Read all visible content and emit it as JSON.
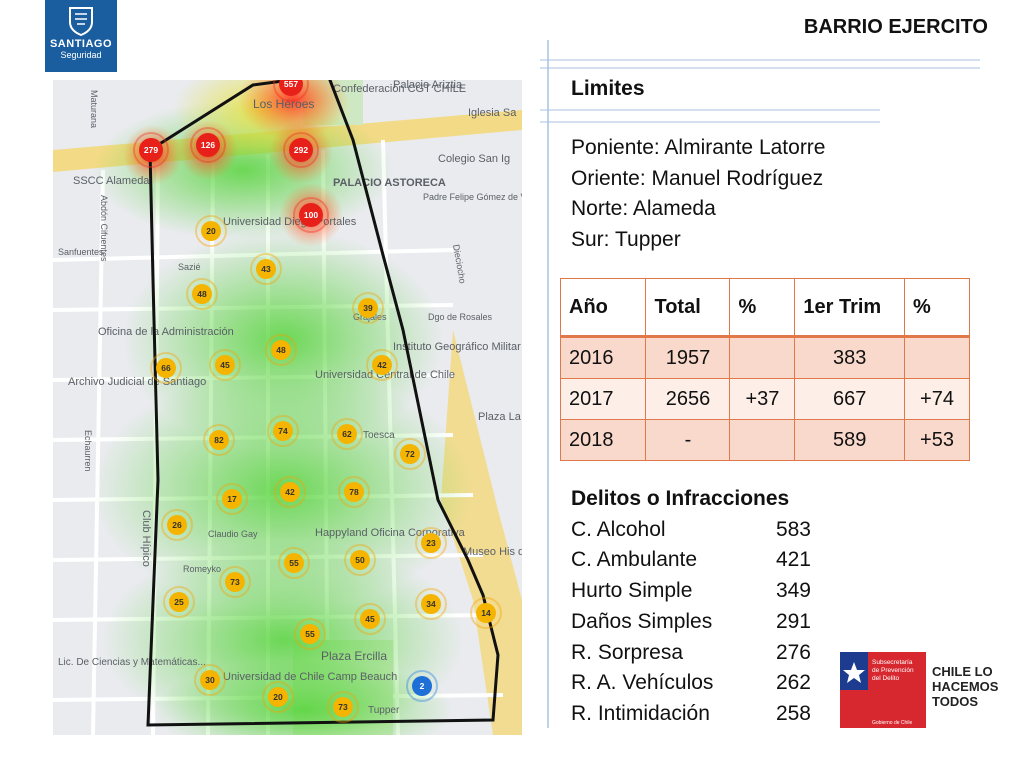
{
  "brand": {
    "line1": "SANTIAGO",
    "line2": "Seguridad",
    "color": "#1a5ea0"
  },
  "page_title": "BARRIO EJERCITO",
  "limits": {
    "title": "Limites",
    "items": [
      "Poniente: Almirante Latorre",
      "Oriente: Manuel Rodríguez",
      "Norte: Alameda",
      "Sur: Tupper"
    ]
  },
  "table": {
    "headers": [
      "Año",
      "Total",
      "%",
      "1er Trim",
      "%"
    ],
    "rows": [
      [
        "2016",
        "1957",
        "",
        "383",
        ""
      ],
      [
        "2017",
        "2656",
        "+37",
        "667",
        "+74"
      ],
      [
        "2018",
        "-",
        "",
        "589",
        "+53"
      ]
    ]
  },
  "crimes": {
    "title": "Delitos o Infracciones",
    "items": [
      {
        "name": "C. Alcohol",
        "count": "583"
      },
      {
        "name": "C. Ambulante",
        "count": "421"
      },
      {
        "name": "Hurto Simple",
        "count": "349"
      },
      {
        "name": "Daños Simples",
        "count": "291"
      },
      {
        "name": "R. Sorpresa",
        "count": "276"
      },
      {
        "name": "R. A. Vehículos",
        "count": "262"
      },
      {
        "name": "R. Intimidación",
        "count": "258"
      }
    ]
  },
  "map": {
    "labels": {
      "palacio_ariztia": "Palacio Ariztia",
      "los_heroes": "Los Héroes",
      "confederacion": "Confederación CGT CHILE",
      "iglesia": "Iglesia Sa",
      "colegio": "Colegio San Ig",
      "sscc": "SSCC Alameda",
      "palacio_astoreca": "PALACIO ASTORECA",
      "padre_felipe": "Padre Felipe Gómez de V",
      "udp": "Universidad Diego Portales",
      "oficina": "Oficina de la Administración",
      "archivo": "Archivo Judicial de Santiago",
      "instituto": "Instituto Geográfico Militar",
      "ucentral": "Universidad Central de Chile",
      "plaza_heras": "Plaza La Heras",
      "toesca": "Toesca",
      "happyland": "Happyland Oficina Corporativa",
      "museo": "Museo His del Ejér",
      "club_hipico": "Club Hípico",
      "plaza_ercilla": "Plaza Ercilla",
      "lic_ciencias": "Lic. De Ciencias y Matemáticas...",
      "uchile": "Universidad de Chile Camp Beauch",
      "tupper": "Tupper",
      "echaurren": "Echaurren",
      "maturana": "Maturana",
      "abdon": "Abdón Cifuentes",
      "sanfuentes": "Sanfuentes",
      "sazie": "Sazié",
      "grajales": "Grajales",
      "dieciocho": "Dieciocho",
      "rosales": "Dgo de Rosales",
      "gay": "Claudio Gay",
      "romeyko": "Romeyko"
    },
    "hotspots": [
      {
        "value": "557",
        "level": "red"
      },
      {
        "value": "279",
        "level": "red"
      },
      {
        "value": "126",
        "level": "red"
      },
      {
        "value": "292",
        "level": "red"
      },
      {
        "value": "100",
        "level": "red"
      },
      {
        "value": "20",
        "level": "orange"
      },
      {
        "value": "43",
        "level": "orange"
      },
      {
        "value": "48",
        "level": "orange"
      },
      {
        "value": "39",
        "level": "orange"
      },
      {
        "value": "66",
        "level": "orange"
      },
      {
        "value": "45",
        "level": "orange"
      },
      {
        "value": "48",
        "level": "orange"
      },
      {
        "value": "42",
        "level": "orange"
      },
      {
        "value": "82",
        "level": "orange"
      },
      {
        "value": "74",
        "level": "orange"
      },
      {
        "value": "62",
        "level": "orange"
      },
      {
        "value": "72",
        "level": "orange"
      },
      {
        "value": "17",
        "level": "orange"
      },
      {
        "value": "42",
        "level": "orange"
      },
      {
        "value": "78",
        "level": "orange"
      },
      {
        "value": "26",
        "level": "orange"
      },
      {
        "value": "23",
        "level": "orange"
      },
      {
        "value": "55",
        "level": "orange"
      },
      {
        "value": "50",
        "level": "orange"
      },
      {
        "value": "73",
        "level": "orange"
      },
      {
        "value": "25",
        "level": "orange"
      },
      {
        "value": "34",
        "level": "orange"
      },
      {
        "value": "14",
        "level": "orange"
      },
      {
        "value": "45",
        "level": "orange"
      },
      {
        "value": "55",
        "level": "orange"
      },
      {
        "value": "30",
        "level": "orange"
      },
      {
        "value": "2",
        "level": "blue"
      },
      {
        "value": "20",
        "level": "orange"
      },
      {
        "value": "73",
        "level": "orange"
      }
    ]
  },
  "footer": {
    "subsecretaria": [
      "Subsecretaría",
      "de Prevención",
      "del Delito"
    ],
    "gobierno": "Gobierno de Chile",
    "slogan": [
      "CHILE LO",
      "HACEMOS",
      "TODOS"
    ]
  }
}
